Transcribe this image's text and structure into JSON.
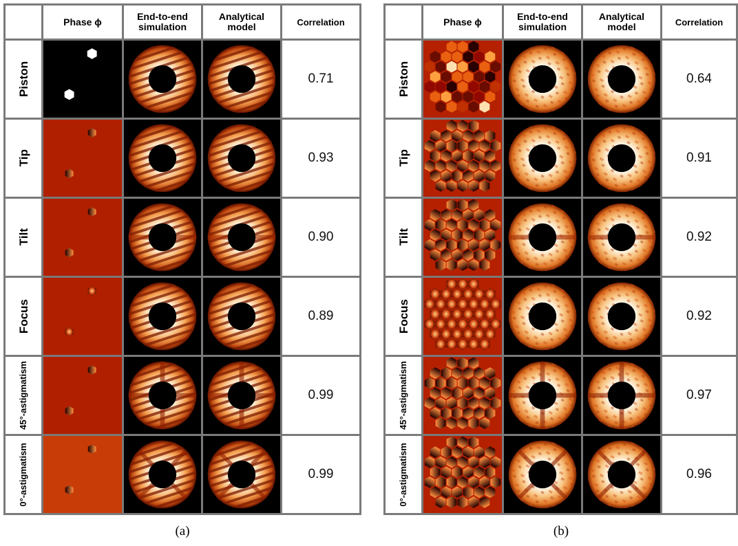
{
  "panels": [
    {
      "caption": "(a)",
      "headers": [
        "Phase ϕ",
        "End-to-end simulation",
        "Analytical model",
        "Correlation"
      ],
      "rows": [
        {
          "label": "Piston",
          "correlation": "0.71"
        },
        {
          "label": "Tip",
          "correlation": "0.93"
        },
        {
          "label": "Tilt",
          "correlation": "0.90"
        },
        {
          "label": "Focus",
          "correlation": "0.89"
        },
        {
          "label": "45°-astigmatism",
          "correlation": "0.99"
        },
        {
          "label": "0°-astigmatism",
          "correlation": "0.99"
        }
      ]
    },
    {
      "caption": "(b)",
      "headers": [
        "Phase ϕ",
        "End-to-end simulation",
        "Analytical model",
        "Correlation"
      ],
      "rows": [
        {
          "label": "Piston",
          "correlation": "0.64"
        },
        {
          "label": "Tip",
          "correlation": "0.91"
        },
        {
          "label": "Tilt",
          "correlation": "0.92"
        },
        {
          "label": "Focus",
          "correlation": "0.92"
        },
        {
          "label": "45°-astigmatism",
          "correlation": "0.97"
        },
        {
          "label": "0°-astigmatism",
          "correlation": "0.96"
        }
      ]
    }
  ]
}
